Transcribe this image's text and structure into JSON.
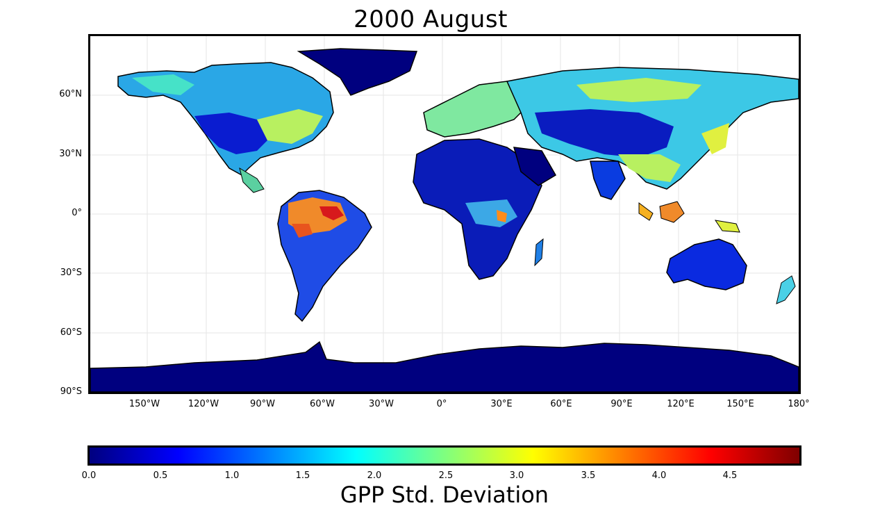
{
  "title": "2000  August",
  "lat_ticks": [
    "60°N",
    "30°N",
    "0°",
    "30°S",
    "60°S",
    "90°S"
  ],
  "lon_ticks": [
    "150°W",
    "120°W",
    "90°W",
    "60°W",
    "30°W",
    "0°",
    "30°E",
    "60°E",
    "90°E",
    "120°E",
    "150°E",
    "180°"
  ],
  "colorbar": {
    "label": "GPP  Std.  Deviation",
    "ticks": [
      "0.0",
      "0.5",
      "1.0",
      "1.5",
      "2.0",
      "2.5",
      "3.0",
      "3.5",
      "4.0",
      "4.5"
    ],
    "colors": [
      "#00007f",
      "#0000ff",
      "#007fff",
      "#00ffff",
      "#7fff7f",
      "#ffff00",
      "#ff7f00",
      "#ff0000",
      "#7f0000"
    ]
  },
  "colors": {
    "ocean": "#ffffff",
    "low": "#00007f",
    "mid": "#7fff7f",
    "high": "#d7191c"
  }
}
